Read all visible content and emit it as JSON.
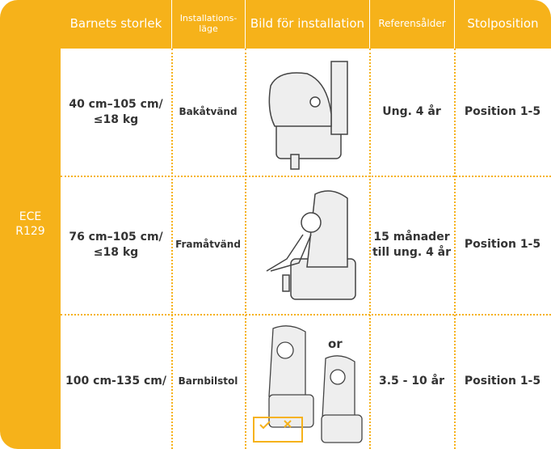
{
  "table": {
    "side_label": "ECE R129",
    "header": [
      "Barnets storlek",
      "Installations-läge",
      "Bild för installation",
      "Referensålder",
      "Stolposition"
    ],
    "rows": [
      [
        "40 cm–105 cm/ ≤18 kg",
        "Bakåtvänd",
        "Ung. 4 år",
        "Position 1-5"
      ],
      [
        "76 cm–105 cm/ ≤18 kg",
        "Framåtvänd",
        "15 månader till ung. 4 år",
        "Position 1-5"
      ],
      [
        "100 cm-135 cm/",
        "Barnbilstol",
        "3.5 - 10 år",
        "Position 1-5"
      ]
    ],
    "image_note": "or"
  }
}
